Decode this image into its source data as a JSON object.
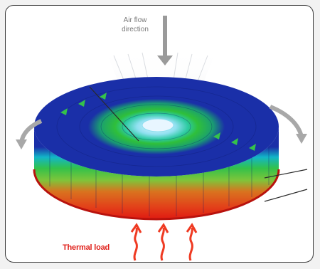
{
  "labels": {
    "airflow": "Air flow\ndirection",
    "thermal": "Thermal load"
  },
  "colors": {
    "frame_border": "#3a3a3a",
    "airflow_arrow": "#9a9a9a",
    "rotation_arrow": "#a8a8a8",
    "top_face": "#1a2fa8",
    "band_blue": "#1a2fa8",
    "band_cyan": "#12b6c8",
    "band_green": "#33c24a",
    "band_orange": "#d9731f",
    "band_red": "#e01a12",
    "thermal_text": "#e0201a",
    "heat_arrow": "#ef3a22"
  },
  "icons": {
    "airflow_arrow": "arrow-down-icon",
    "rotation_left": "curved-arrow-left-icon",
    "rotation_right": "curved-arrow-right-icon",
    "heat_arrow": "wavy-arrow-up-icon"
  }
}
